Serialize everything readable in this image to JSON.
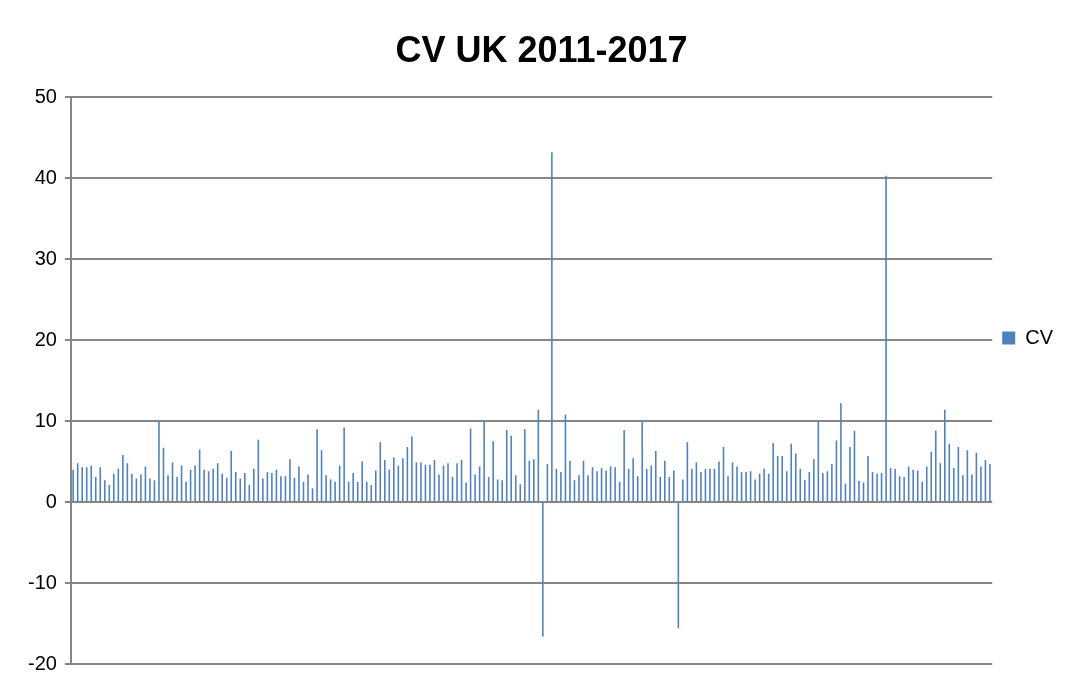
{
  "chart_data": {
    "type": "bar",
    "title": "CV UK 2011-2017",
    "categories": [
      null,
      null,
      null,
      null,
      null,
      null,
      null,
      null,
      null,
      null,
      null,
      null,
      null,
      null,
      null,
      null,
      null,
      null,
      null,
      null,
      null,
      null,
      null,
      null,
      null,
      null,
      null,
      null,
      null,
      null,
      null,
      null,
      null,
      null,
      null,
      null,
      null,
      null,
      null,
      null,
      null,
      null,
      null,
      null,
      null,
      null,
      null,
      null,
      null,
      null,
      null,
      null,
      null,
      null,
      null,
      null,
      null,
      null,
      null,
      null,
      null,
      null,
      null,
      null,
      null,
      null,
      null,
      null,
      null,
      null,
      null,
      null,
      null,
      null,
      null,
      null,
      null,
      null,
      null,
      null,
      null,
      null,
      null,
      null,
      null,
      null,
      null,
      null,
      null,
      null,
      null,
      null,
      null,
      null,
      null,
      null,
      null,
      null,
      null,
      null,
      null,
      null,
      null,
      null,
      null,
      null,
      null,
      null,
      null,
      null,
      null,
      null,
      null,
      null,
      null,
      null,
      null,
      null,
      null,
      null,
      null,
      null,
      null,
      null,
      null,
      null,
      null,
      null,
      null,
      null,
      null,
      null,
      null,
      null,
      null,
      null,
      null,
      null,
      null,
      null,
      null,
      null,
      null,
      null,
      null,
      null,
      null,
      null,
      null,
      null,
      null,
      null,
      null,
      null,
      null,
      null,
      null,
      null,
      null,
      null,
      null,
      null,
      null,
      null,
      null,
      null,
      null,
      null,
      null,
      null,
      null,
      null,
      null,
      null,
      null,
      null,
      null,
      null,
      null,
      null,
      null,
      null,
      null,
      null,
      null,
      null,
      null,
      null,
      null,
      null,
      null,
      null,
      null,
      null,
      null,
      null,
      null,
      null,
      null,
      null,
      null,
      null,
      null,
      null
    ],
    "series": [
      {
        "name": "CV",
        "color": "#4f81bd",
        "values": [
          4.0,
          4.8,
          4.3,
          4.3,
          4.5,
          3.1,
          4.3,
          2.7,
          2.1,
          3.5,
          4.1,
          5.8,
          4.8,
          3.5,
          2.9,
          3.4,
          4.4,
          2.9,
          2.7,
          10.0,
          6.7,
          3.3,
          4.9,
          3.1,
          4.5,
          2.5,
          4.0,
          4.5,
          6.5,
          4.0,
          3.8,
          4.1,
          4.8,
          3.5,
          3.0,
          6.3,
          3.7,
          2.9,
          3.6,
          2.1,
          4.1,
          7.7,
          2.9,
          3.7,
          3.6,
          4.0,
          3.2,
          3.2,
          5.3,
          3.0,
          4.4,
          2.5,
          3.4,
          1.7,
          9.0,
          6.4,
          3.3,
          2.8,
          2.5,
          4.5,
          9.2,
          2.5,
          3.6,
          2.5,
          5.0,
          2.5,
          2.1,
          3.9,
          7.4,
          5.2,
          4.0,
          5.5,
          4.5,
          5.4,
          6.8,
          8.1,
          4.9,
          4.9,
          4.6,
          4.6,
          5.2,
          3.4,
          4.5,
          4.8,
          3.1,
          4.8,
          5.2,
          2.4,
          9.1,
          3.4,
          4.4,
          10.0,
          3.1,
          7.5,
          2.8,
          2.7,
          8.9,
          8.2,
          3.3,
          2.2,
          9.0,
          5.1,
          5.3,
          11.4,
          -16.6,
          4.7,
          43.2,
          4.1,
          3.7,
          10.8,
          5.1,
          2.7,
          3.3,
          5.1,
          3.3,
          4.3,
          3.8,
          4.2,
          3.9,
          4.4,
          4.3,
          2.5,
          8.9,
          4.1,
          5.4,
          3.2,
          9.9,
          4.1,
          4.5,
          6.3,
          3.1,
          5.1,
          3.1,
          3.9,
          -15.6,
          2.8,
          7.4,
          4.1,
          4.9,
          3.7,
          4.1,
          4.1,
          4.1,
          5.0,
          6.8,
          3.2,
          4.9,
          4.4,
          3.7,
          3.7,
          3.8,
          2.8,
          3.5,
          4.1,
          3.5,
          7.3,
          5.7,
          5.7,
          3.8,
          7.2,
          6.0,
          4.1,
          2.7,
          3.7,
          5.3,
          10.0,
          3.6,
          3.8,
          4.7,
          7.6,
          12.2,
          2.3,
          6.8,
          8.8,
          2.6,
          2.4,
          5.7,
          3.7,
          3.5,
          3.6,
          40.3,
          4.2,
          4.1,
          3.2,
          3.1,
          4.4,
          4.0,
          3.9,
          2.5,
          4.4,
          6.2,
          8.8,
          4.8,
          11.4,
          7.2,
          4.2,
          6.8,
          3.3,
          6.4,
          3.4,
          6.1,
          4.4,
          5.2,
          4.7
        ]
      }
    ],
    "ylim": [
      -20,
      50
    ],
    "yticks": [
      -20,
      -10,
      0,
      10,
      20,
      30,
      40,
      50
    ],
    "grid": "y",
    "legend": "right",
    "tick_labels": "y"
  }
}
